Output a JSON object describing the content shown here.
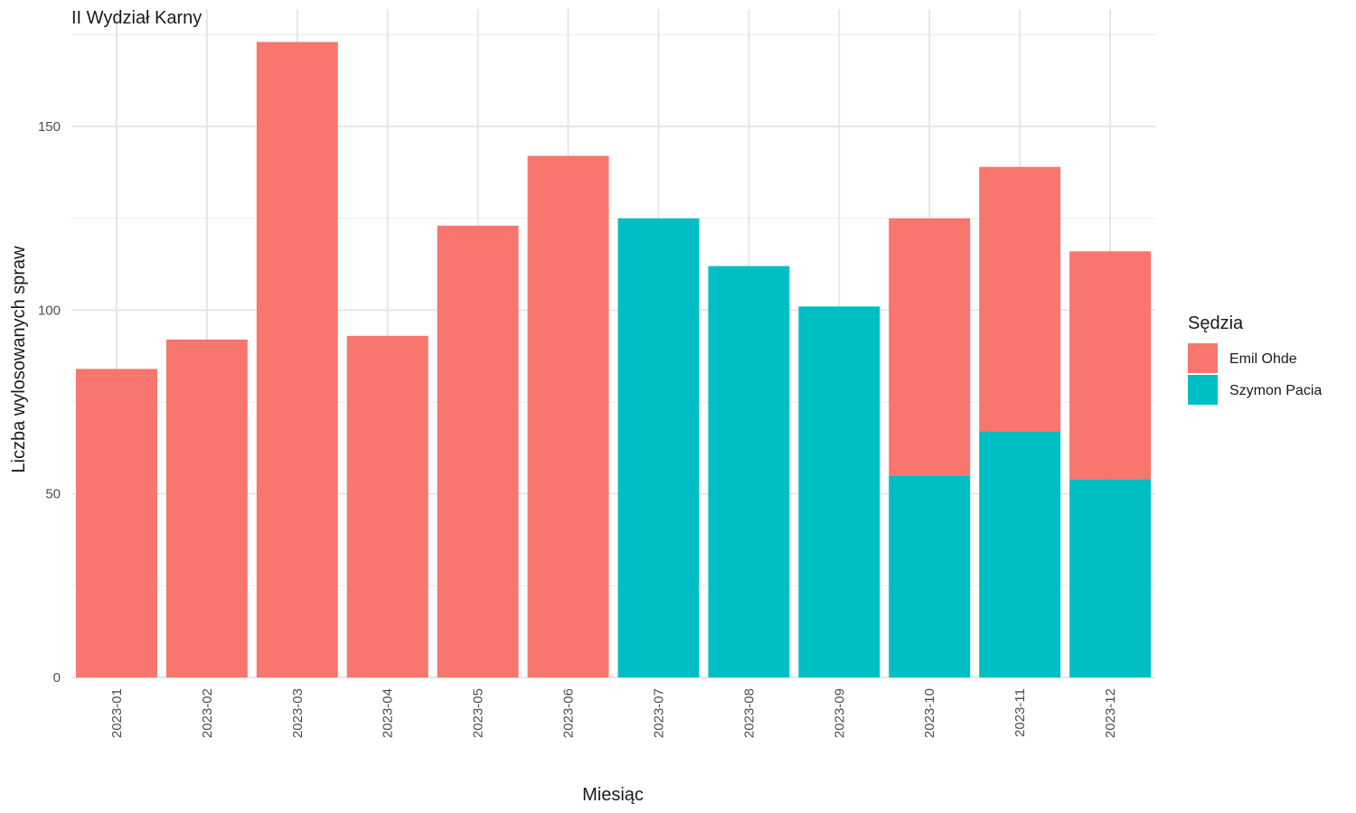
{
  "chart_data": {
    "type": "bar",
    "stacked": true,
    "title": "II Wydział Karny",
    "xlabel": "Miesiąc",
    "ylabel": "Liczba wylosowanych spraw",
    "categories": [
      "2023-01",
      "2023-02",
      "2023-03",
      "2023-04",
      "2023-05",
      "2023-06",
      "2023-07",
      "2023-08",
      "2023-09",
      "2023-10",
      "2023-11",
      "2023-12"
    ],
    "series": [
      {
        "name": "Szymon Pacia",
        "color": "#00BFC4",
        "values": [
          0,
          0,
          0,
          0,
          0,
          0,
          125,
          112,
          101,
          55,
          67,
          54
        ]
      },
      {
        "name": "Emil Ohde",
        "color": "#F8766D",
        "values": [
          84,
          92,
          173,
          93,
          123,
          142,
          0,
          0,
          0,
          70,
          72,
          62
        ]
      }
    ],
    "ylim": [
      0,
      175
    ],
    "yticks": [
      0,
      50,
      100,
      150
    ],
    "grid": true,
    "legend": {
      "title": "Sędzia",
      "placement": "right",
      "entries": [
        "Emil Ohde",
        "Szymon Pacia"
      ]
    }
  }
}
